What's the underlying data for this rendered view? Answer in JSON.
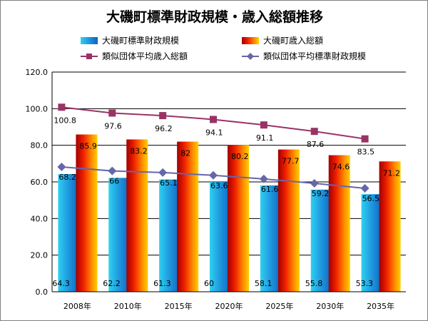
{
  "chart_data": {
    "type": "bar",
    "title": "大磯町標準財政規模・歳入総額推移",
    "categories": [
      "2008年",
      "2010年",
      "2015年",
      "2020年",
      "2025年",
      "2030年",
      "2035年"
    ],
    "ylim": [
      0,
      120
    ],
    "yticks": [
      "0.0",
      "20.0",
      "40.0",
      "60.0",
      "80.0",
      "100.0",
      "120.0"
    ],
    "grid": true,
    "legend_position": "top",
    "series": [
      {
        "name": "大磯町標準財政規模",
        "kind": "bar",
        "color": "#1f9ce0",
        "values": [
          64.3,
          62.2,
          61.3,
          60.0,
          58.1,
          55.8,
          53.3
        ]
      },
      {
        "name": "大磯町歳入総額",
        "kind": "bar",
        "color": "#e83010",
        "values": [
          85.9,
          83.2,
          82.0,
          80.2,
          77.7,
          74.6,
          71.2
        ]
      },
      {
        "name": "類似団体平均歳入総額",
        "kind": "line",
        "color": "#993366",
        "marker": "square",
        "values": [
          100.8,
          97.6,
          96.2,
          94.1,
          91.1,
          87.6,
          83.5
        ]
      },
      {
        "name": "類似団体平均標準財政規模",
        "kind": "line",
        "color": "#6666aa",
        "marker": "diamond",
        "values": [
          68.2,
          66.0,
          65.1,
          63.6,
          61.6,
          59.2,
          56.5
        ]
      }
    ]
  }
}
